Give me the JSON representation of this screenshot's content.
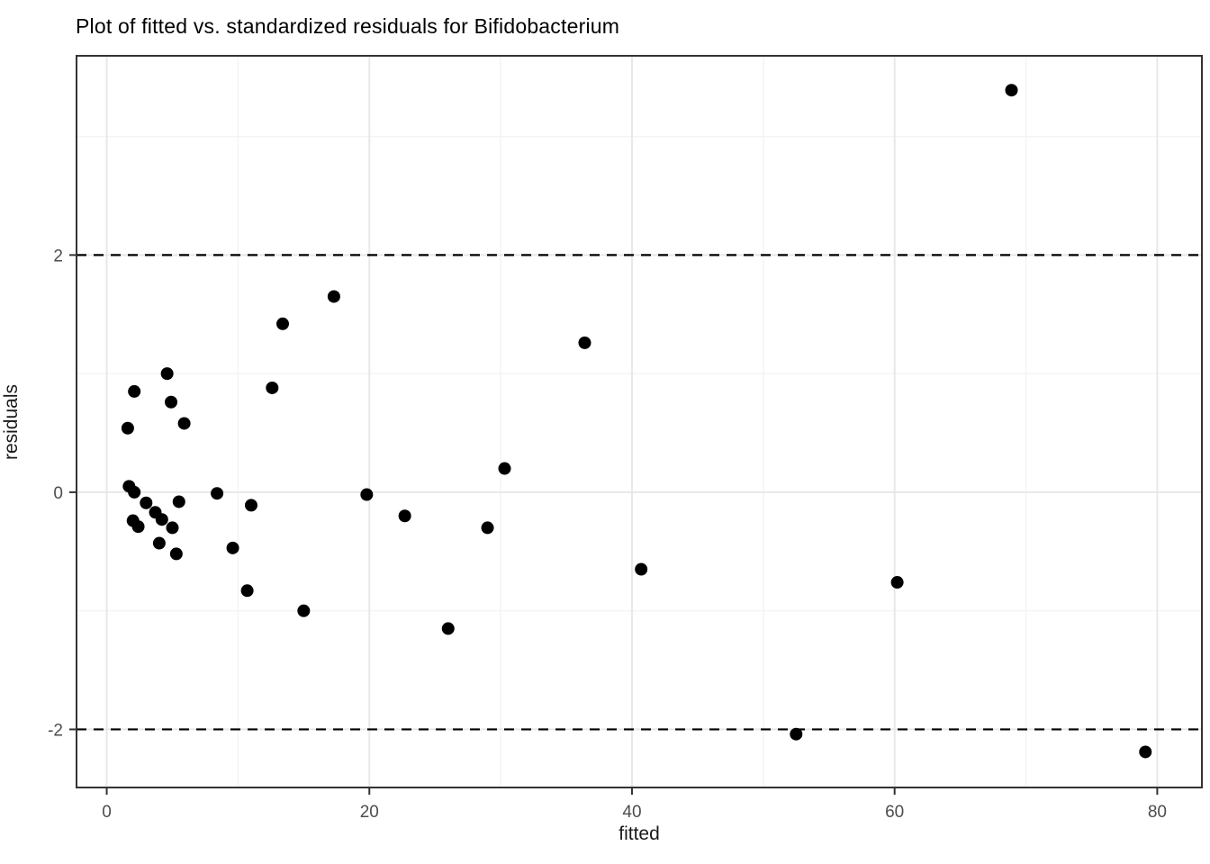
{
  "figure": {
    "title": "Plot of fitted vs. standardized residuals for Bifidobacterium"
  },
  "chart_data": {
    "type": "scatter",
    "title": "Plot of fitted vs. standardized residuals for Bifidobacterium",
    "xlabel": "fitted",
    "ylabel": "residuals",
    "xlim": [
      -2.3,
      83.4
    ],
    "ylim": [
      -2.49,
      3.68
    ],
    "x_major_ticks": [
      0,
      20,
      40,
      60,
      80
    ],
    "x_minor_ticks": [
      10,
      30,
      50,
      70
    ],
    "y_major_ticks": [
      -2,
      0,
      2
    ],
    "y_minor_ticks": [
      -1,
      1,
      3
    ],
    "grid": "on",
    "legend": "none",
    "reference_lines": [
      {
        "y": 2,
        "style": "dashed"
      },
      {
        "y": -2,
        "style": "dashed"
      }
    ],
    "points": [
      {
        "fitted": 1.6,
        "residual": 0.54
      },
      {
        "fitted": 2.1,
        "residual": 0.85
      },
      {
        "fitted": 4.6,
        "residual": 1.0
      },
      {
        "fitted": 4.9,
        "residual": 0.76
      },
      {
        "fitted": 5.9,
        "residual": 0.58
      },
      {
        "fitted": 1.7,
        "residual": 0.05
      },
      {
        "fitted": 2.1,
        "residual": 0.0
      },
      {
        "fitted": 3.0,
        "residual": -0.09
      },
      {
        "fitted": 5.5,
        "residual": -0.08
      },
      {
        "fitted": 3.7,
        "residual": -0.17
      },
      {
        "fitted": 4.2,
        "residual": -0.23
      },
      {
        "fitted": 2.0,
        "residual": -0.24
      },
      {
        "fitted": 2.4,
        "residual": -0.29
      },
      {
        "fitted": 5.0,
        "residual": -0.3
      },
      {
        "fitted": 4.0,
        "residual": -0.43
      },
      {
        "fitted": 5.3,
        "residual": -0.52
      },
      {
        "fitted": 8.4,
        "residual": -0.01
      },
      {
        "fitted": 9.6,
        "residual": -0.47
      },
      {
        "fitted": 11.0,
        "residual": -0.11
      },
      {
        "fitted": 10.7,
        "residual": -0.83
      },
      {
        "fitted": 12.6,
        "residual": 0.88
      },
      {
        "fitted": 13.4,
        "residual": 1.42
      },
      {
        "fitted": 17.3,
        "residual": 1.65
      },
      {
        "fitted": 15.0,
        "residual": -1.0
      },
      {
        "fitted": 19.8,
        "residual": -0.02
      },
      {
        "fitted": 22.7,
        "residual": -0.2
      },
      {
        "fitted": 26.0,
        "residual": -1.15
      },
      {
        "fitted": 29.0,
        "residual": -0.3
      },
      {
        "fitted": 30.3,
        "residual": 0.2
      },
      {
        "fitted": 36.4,
        "residual": 1.26
      },
      {
        "fitted": 40.7,
        "residual": -0.65
      },
      {
        "fitted": 52.5,
        "residual": -2.04
      },
      {
        "fitted": 60.2,
        "residual": -0.76
      },
      {
        "fitted": 68.9,
        "residual": 3.39
      },
      {
        "fitted": 79.1,
        "residual": -2.19
      }
    ],
    "colors": {
      "point": "#000000",
      "grid_major": "#e8e8e8",
      "grid_minor": "#f4f4f4",
      "panel_border": "#333333",
      "tick_mark": "#333333",
      "tick_label": "#4d4d4d",
      "axis_title": "#1a1a1a",
      "title": "#000000",
      "reference_line": "#000000",
      "background": "#ffffff"
    }
  }
}
